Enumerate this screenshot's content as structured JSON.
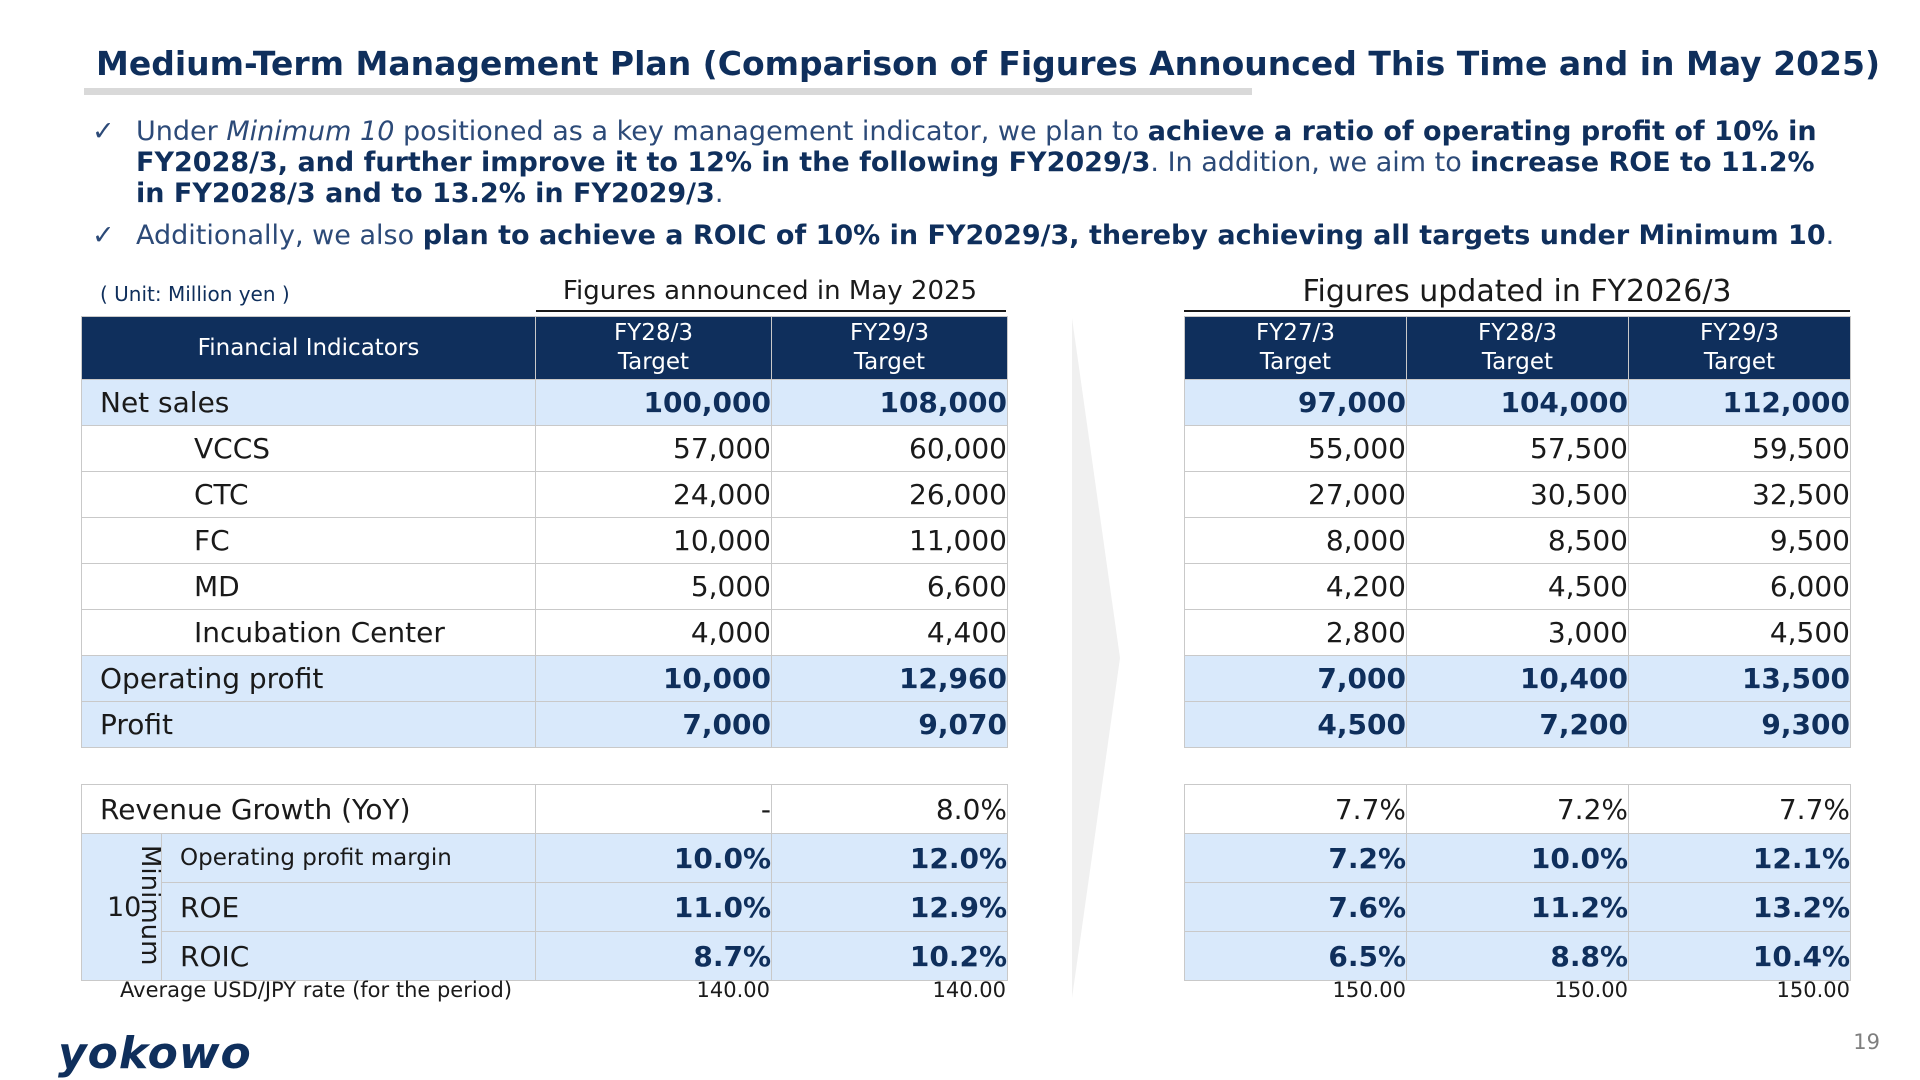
{
  "title": "Medium-Term Management Plan (Comparison of Figures Announced This Time and in May 2025)",
  "bullets": [
    {
      "mark": "✓",
      "line1": {
        "a": "Under ",
        "i": "Minimum 10",
        "b": " positioned as a key management indicator, we plan to ",
        "c": "achieve a ratio of operating profit of 10% in"
      },
      "line2": {
        "a": "FY2028/3, and further improve it to 12% in the following FY2029/3",
        "b": ". In addition, we aim to ",
        "c": "increase ROE to 11.2%"
      },
      "line3": {
        "a": "in FY2028/3 and to 13.2% in FY2029/3",
        "b": "."
      }
    },
    {
      "mark": "✓",
      "a": "Additionally, we also ",
      "b": "plan to achieve a ROIC of 10% in FY2029/3, thereby achieving all targets under Minimum 10",
      "c": "."
    }
  ],
  "unit": "( Unit: Million yen )",
  "group_left": "Figures announced in May 2025",
  "group_right": "Figures updated in FY2026/3",
  "table_left": {
    "header": {
      "label": "Financial Indicators",
      "cols": [
        [
          "FY28/3",
          "Target"
        ],
        [
          "FY29/3",
          "Target"
        ]
      ]
    },
    "rows": [
      {
        "label": "Net sales",
        "v": [
          "100,000",
          "108,000"
        ]
      },
      {
        "label": "VCCS",
        "v": [
          "57,000",
          "60,000"
        ]
      },
      {
        "label": "CTC",
        "v": [
          "24,000",
          "26,000"
        ]
      },
      {
        "label": "FC",
        "v": [
          "10,000",
          "11,000"
        ]
      },
      {
        "label": "MD",
        "v": [
          "5,000",
          "6,600"
        ]
      },
      {
        "label": "Incubation Center",
        "v": [
          "4,000",
          "4,400"
        ]
      },
      {
        "label": "Operating profit",
        "v": [
          "10,000",
          "12,960"
        ]
      },
      {
        "label": "Profit",
        "v": [
          "7,000",
          "9,070"
        ]
      }
    ],
    "rows2": [
      {
        "label": "Revenue Growth (YoY)",
        "v": [
          "-",
          "8.0%"
        ]
      },
      {
        "label": "Operating profit margin",
        "v": [
          "10.0%",
          "12.0%"
        ]
      },
      {
        "label": "ROE",
        "v": [
          "11.0%",
          "12.9%"
        ]
      },
      {
        "label": "ROIC",
        "v": [
          "8.7%",
          "10.2%"
        ]
      }
    ],
    "minimum_word": "Minimum",
    "minimum_num": "10",
    "rate_label": "Average USD/JPY rate (for the period)",
    "rates": [
      "140.00",
      "140.00"
    ]
  },
  "table_right": {
    "header": {
      "cols": [
        [
          "FY27/3",
          "Target"
        ],
        [
          "FY28/3",
          "Target"
        ],
        [
          "FY29/3",
          "Target"
        ]
      ]
    },
    "rows": [
      [
        "97,000",
        "104,000",
        "112,000"
      ],
      [
        "55,000",
        "57,500",
        "59,500"
      ],
      [
        "27,000",
        "30,500",
        "32,500"
      ],
      [
        "8,000",
        "8,500",
        "9,500"
      ],
      [
        "4,200",
        "4,500",
        "6,000"
      ],
      [
        "2,800",
        "3,000",
        "4,500"
      ],
      [
        "7,000",
        "10,400",
        "13,500"
      ],
      [
        "4,500",
        "7,200",
        "9,300"
      ]
    ],
    "rows2": [
      [
        "7.7%",
        "7.2%",
        "7.7%"
      ],
      [
        "7.2%",
        "10.0%",
        "12.1%"
      ],
      [
        "7.6%",
        "11.2%",
        "13.2%"
      ],
      [
        "6.5%",
        "8.8%",
        "10.4%"
      ]
    ],
    "rates": [
      "150.00",
      "150.00",
      "150.00"
    ]
  },
  "logo": "yokowo",
  "page_number": "19",
  "colors": {
    "navy": "#0f2f5c",
    "highlight": "#d9e9fb",
    "grid": "#c9c9c9"
  }
}
